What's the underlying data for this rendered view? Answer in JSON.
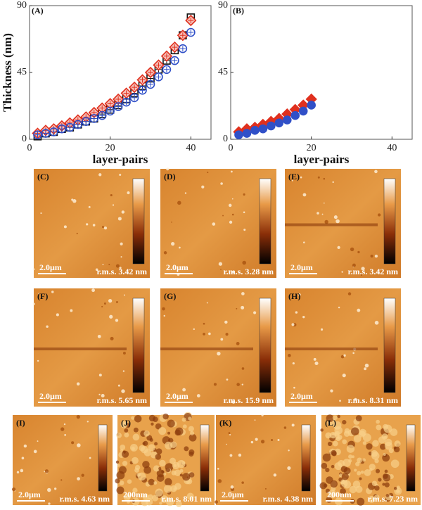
{
  "chart_data": [
    {
      "type": "scatter",
      "label": "(A)",
      "ylabel": "Thickness (nm)",
      "xlabel": "layer-pairs",
      "x": [
        2,
        4,
        6,
        8,
        10,
        12,
        14,
        16,
        18,
        20,
        22,
        24,
        26,
        28,
        30,
        32,
        34,
        36,
        38,
        40
      ],
      "xlim": [
        0,
        45
      ],
      "xticks": [
        0,
        20,
        40
      ],
      "ylim": [
        0,
        90
      ],
      "yticks": [
        0,
        45,
        90
      ],
      "series": [
        {
          "color": "#111111",
          "marker": "square",
          "filled": false,
          "values": [
            2,
            4,
            5,
            7,
            8,
            10,
            12,
            14,
            17,
            20,
            23,
            27,
            31,
            36,
            41,
            47,
            53,
            60,
            70,
            82
          ]
        },
        {
          "color": "#e0301e",
          "marker": "diamond",
          "filled": false,
          "values": [
            4,
            6,
            7,
            9,
            11,
            13,
            15,
            18,
            21,
            24,
            27,
            31,
            35,
            40,
            45,
            50,
            56,
            62,
            70,
            80
          ]
        },
        {
          "color": "#3050c8",
          "marker": "circle",
          "filled": false,
          "values": [
            3,
            4,
            5,
            7,
            8,
            10,
            12,
            14,
            16,
            19,
            22,
            25,
            28,
            33,
            37,
            42,
            47,
            53,
            61,
            72
          ]
        }
      ]
    },
    {
      "type": "scatter",
      "label": "(B)",
      "xlabel": "layer-pairs",
      "x": [
        2,
        4,
        6,
        8,
        10,
        12,
        14,
        16,
        18,
        20
      ],
      "xlim": [
        0,
        45
      ],
      "xticks": [
        0,
        20,
        40
      ],
      "ylim": [
        0,
        90
      ],
      "yticks": [
        0,
        45,
        90
      ],
      "series": [
        {
          "color": "#e0301e",
          "marker": "diamond",
          "filled": true,
          "values": [
            5,
            7,
            8,
            10,
            12,
            14,
            17,
            20,
            23,
            27
          ]
        },
        {
          "color": "#3050c8",
          "marker": "circle",
          "filled": true,
          "values": [
            3,
            4,
            6,
            7,
            9,
            11,
            13,
            16,
            19,
            23
          ]
        }
      ]
    }
  ],
  "panels": [
    {
      "label": "(C)",
      "scale": "2.0μm",
      "rms": "r.m.s. 3.42 nm"
    },
    {
      "label": "(D)",
      "scale": "2.0μm",
      "rms": "r.m.s. 3.28 nm"
    },
    {
      "label": "(E)",
      "scale": "2.0μm",
      "rms": "r.m.s. 3.42 nm"
    },
    {
      "label": "(F)",
      "scale": "2.0μm",
      "rms": "r.m.s. 5.65 nm"
    },
    {
      "label": "(G)",
      "scale": "2.0μm",
      "rms": "r.m.s. 15.9 nm"
    },
    {
      "label": "(H)",
      "scale": "2.0μm",
      "rms": "r.m.s. 8.31 nm"
    },
    {
      "label": "(I)",
      "scale": "2.0μm",
      "rms": "r.m.s. 4.63 nm"
    },
    {
      "label": "(J)",
      "scale": "200nm",
      "rms": "r.m.s. 8.01 nm"
    },
    {
      "label": "(K)",
      "scale": "2.0μm",
      "rms": "r.m.s. 4.38 nm"
    },
    {
      "label": "(L)",
      "scale": "200nm",
      "rms": "r.m.s. 7.23 nm"
    }
  ]
}
